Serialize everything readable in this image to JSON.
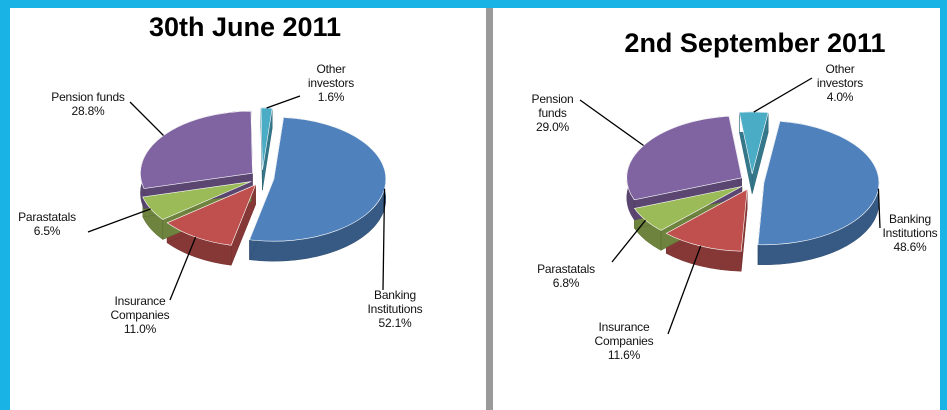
{
  "chart_data": [
    {
      "type": "pie",
      "title": "30th June 2011",
      "categories": [
        "Banking Institutions",
        "Insurance Companies",
        "Parastatals",
        "Pension funds",
        "Other investors"
      ],
      "values": [
        52.1,
        11.0,
        6.5,
        28.8,
        1.6
      ],
      "value_labels": [
        "52.1%",
        "11.0%",
        "6.5%",
        "28.8%",
        "1.6%"
      ],
      "colors": [
        "#4f81bd",
        "#c0504d",
        "#9bbb59",
        "#8064a2",
        "#4bacc6"
      ]
    },
    {
      "type": "pie",
      "title": "2nd September 2011",
      "categories": [
        "Banking Institutions",
        "Insurance Companies",
        "Parastatals",
        "Pension funds",
        "Other investors"
      ],
      "values": [
        48.6,
        11.6,
        6.8,
        29.0,
        4.0
      ],
      "value_labels": [
        "48.6%",
        "11.6%",
        "6.8%",
        "29.0%",
        "4.0%"
      ],
      "colors": [
        "#4f81bd",
        "#c0504d",
        "#9bbb59",
        "#8064a2",
        "#4bacc6"
      ]
    }
  ]
}
